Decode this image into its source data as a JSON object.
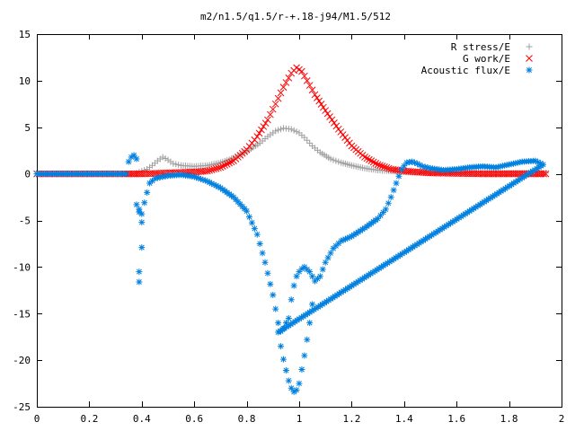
{
  "chart_data": {
    "type": "scatter",
    "title": "m2/n1.5/q1.5/r-+.18-j94/M1.5/512",
    "xlabel": "",
    "ylabel": "",
    "xlim": [
      0,
      2
    ],
    "ylim": [
      -25,
      15
    ],
    "x_ticks": [
      "0",
      "0.2",
      "0.4",
      "0.6",
      "0.8",
      "1",
      "1.2",
      "1.4",
      "1.6",
      "1.8",
      "2"
    ],
    "y_ticks": [
      "15",
      "10",
      "5",
      "0",
      "-5",
      "-10",
      "-15",
      "-20",
      "-25"
    ],
    "grid": false,
    "legend_position": "top-right",
    "series": [
      {
        "name": "R stress/E",
        "marker": "+",
        "color": "#a0a0a0",
        "points": [
          [
            0.0,
            0
          ],
          [
            0.1,
            0
          ],
          [
            0.2,
            0
          ],
          [
            0.3,
            0
          ],
          [
            0.36,
            0
          ],
          [
            0.38,
            0.1
          ],
          [
            0.4,
            0.3
          ],
          [
            0.42,
            0.5
          ],
          [
            0.44,
            0.9
          ],
          [
            0.46,
            1.4
          ],
          [
            0.48,
            1.8
          ],
          [
            0.5,
            1.5
          ],
          [
            0.52,
            1.1
          ],
          [
            0.55,
            0.9
          ],
          [
            0.6,
            0.8
          ],
          [
            0.65,
            0.9
          ],
          [
            0.7,
            1.2
          ],
          [
            0.75,
            1.7
          ],
          [
            0.8,
            2.4
          ],
          [
            0.85,
            3.3
          ],
          [
            0.88,
            4.0
          ],
          [
            0.91,
            4.6
          ],
          [
            0.94,
            4.9
          ],
          [
            0.97,
            4.8
          ],
          [
            1.0,
            4.4
          ],
          [
            1.02,
            3.9
          ],
          [
            1.05,
            3.0
          ],
          [
            1.08,
            2.3
          ],
          [
            1.12,
            1.6
          ],
          [
            1.16,
            1.2
          ],
          [
            1.2,
            0.9
          ],
          [
            1.25,
            0.6
          ],
          [
            1.3,
            0.4
          ],
          [
            1.35,
            0.3
          ],
          [
            1.4,
            0.2
          ],
          [
            1.5,
            0.1
          ],
          [
            1.6,
            0.1
          ],
          [
            1.7,
            0.1
          ],
          [
            1.8,
            0.1
          ],
          [
            1.9,
            0.1
          ],
          [
            1.94,
            0.1
          ]
        ]
      },
      {
        "name": "G work/E",
        "marker": "x",
        "color": "#ff0000",
        "points": [
          [
            0.0,
            0
          ],
          [
            0.1,
            0
          ],
          [
            0.2,
            0
          ],
          [
            0.3,
            0
          ],
          [
            0.36,
            0
          ],
          [
            0.4,
            0
          ],
          [
            0.5,
            0.1
          ],
          [
            0.6,
            0.2
          ],
          [
            0.65,
            0.3
          ],
          [
            0.7,
            0.7
          ],
          [
            0.75,
            1.4
          ],
          [
            0.8,
            2.6
          ],
          [
            0.84,
            4.0
          ],
          [
            0.88,
            5.8
          ],
          [
            0.91,
            7.5
          ],
          [
            0.94,
            9.3
          ],
          [
            0.97,
            10.8
          ],
          [
            0.99,
            11.4
          ],
          [
            1.01,
            11.0
          ],
          [
            1.03,
            10.0
          ],
          [
            1.06,
            8.5
          ],
          [
            1.1,
            6.8
          ],
          [
            1.15,
            4.8
          ],
          [
            1.2,
            3.0
          ],
          [
            1.25,
            1.8
          ],
          [
            1.3,
            1.0
          ],
          [
            1.35,
            0.5
          ],
          [
            1.4,
            0.3
          ],
          [
            1.5,
            0.1
          ],
          [
            1.6,
            0.05
          ],
          [
            1.7,
            0
          ],
          [
            1.8,
            0
          ],
          [
            1.9,
            0
          ],
          [
            1.94,
            0
          ]
        ]
      },
      {
        "name": "Acoustic flux/E",
        "marker": "*",
        "color": "#0080e0",
        "points": [
          [
            0.0,
            0
          ],
          [
            0.05,
            0
          ],
          [
            0.1,
            0
          ],
          [
            0.15,
            0
          ],
          [
            0.2,
            0
          ],
          [
            0.25,
            0
          ],
          [
            0.3,
            0
          ],
          [
            0.34,
            0
          ],
          [
            0.35,
            1.3
          ],
          [
            0.36,
            1.8
          ],
          [
            0.37,
            2.0
          ],
          [
            0.38,
            1.6
          ],
          [
            0.38,
            -3.3
          ],
          [
            0.39,
            -3.8
          ],
          [
            0.39,
            -4.1
          ],
          [
            0.39,
            -10.5
          ],
          [
            0.39,
            -11.6
          ],
          [
            0.4,
            -4.3
          ],
          [
            0.4,
            -5.2
          ],
          [
            0.4,
            -7.9
          ],
          [
            0.41,
            -3.1
          ],
          [
            0.42,
            -2.0
          ],
          [
            0.43,
            -1.0
          ],
          [
            0.45,
            -0.5
          ],
          [
            0.48,
            -0.3
          ],
          [
            0.5,
            -0.2
          ],
          [
            0.55,
            -0.1
          ],
          [
            0.6,
            -0.3
          ],
          [
            0.65,
            -0.8
          ],
          [
            0.7,
            -1.5
          ],
          [
            0.75,
            -2.5
          ],
          [
            0.8,
            -4.0
          ],
          [
            0.84,
            -6.5
          ],
          [
            0.87,
            -9.5
          ],
          [
            0.9,
            -13.0
          ],
          [
            0.92,
            -16.0
          ],
          [
            0.93,
            -16.9
          ],
          [
            0.94,
            -16.6
          ],
          [
            0.95,
            -16.0
          ],
          [
            0.96,
            -15.5
          ],
          [
            0.97,
            -13.5
          ],
          [
            0.98,
            -12.0
          ],
          [
            0.99,
            -11.0
          ],
          [
            1.0,
            -10.5
          ],
          [
            1.01,
            -10.2
          ],
          [
            1.02,
            -10.0
          ],
          [
            1.04,
            -10.5
          ],
          [
            1.06,
            -11.5
          ],
          [
            1.08,
            -11.0
          ],
          [
            1.1,
            -9.5
          ],
          [
            1.13,
            -8.0
          ],
          [
            1.16,
            -7.2
          ],
          [
            1.2,
            -6.7
          ],
          [
            1.25,
            -5.8
          ],
          [
            1.3,
            -4.8
          ],
          [
            1.33,
            -3.8
          ],
          [
            1.35,
            -2.5
          ],
          [
            1.37,
            -1.0
          ],
          [
            1.39,
            0.5
          ],
          [
            1.41,
            1.2
          ],
          [
            1.43,
            1.3
          ],
          [
            1.45,
            1.1
          ],
          [
            1.47,
            0.8
          ],
          [
            1.5,
            0.6
          ],
          [
            1.55,
            0.4
          ],
          [
            1.6,
            0.5
          ],
          [
            1.65,
            0.7
          ],
          [
            1.7,
            0.8
          ],
          [
            1.75,
            0.7
          ],
          [
            1.8,
            1.0
          ],
          [
            1.85,
            1.3
          ],
          [
            1.9,
            1.4
          ],
          [
            1.93,
            1.0
          ],
          [
            0.92,
            -17.0
          ],
          [
            0.93,
            -18.5
          ],
          [
            0.94,
            -19.9
          ],
          [
            0.95,
            -21.1
          ],
          [
            0.96,
            -22.2
          ],
          [
            0.97,
            -23.0
          ],
          [
            0.98,
            -23.4
          ],
          [
            0.99,
            -23.2
          ],
          [
            1.0,
            -22.5
          ],
          [
            1.01,
            -21.0
          ],
          [
            1.02,
            -19.5
          ],
          [
            1.03,
            -17.8
          ],
          [
            1.04,
            -16.0
          ],
          [
            1.05,
            -14.0
          ]
        ]
      }
    ]
  }
}
